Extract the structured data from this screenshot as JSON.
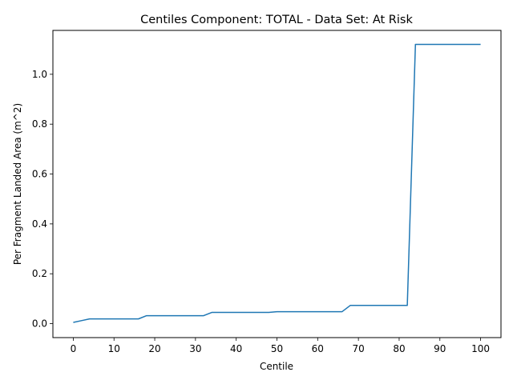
{
  "chart_data": {
    "type": "line",
    "title": "Centiles Component: TOTAL - Data Set: At Risk",
    "xlabel": "Centile",
    "ylabel": "Per Fragment Landed Area (m^2)",
    "xlim": [
      -5,
      105
    ],
    "ylim": [
      -0.056,
      1.176
    ],
    "xticks": [
      0,
      10,
      20,
      30,
      40,
      50,
      60,
      70,
      80,
      90,
      100
    ],
    "xtick_labels": [
      "0",
      "10",
      "20",
      "30",
      "40",
      "50",
      "60",
      "70",
      "80",
      "90",
      "100"
    ],
    "yticks": [
      0.0,
      0.2,
      0.4,
      0.6,
      0.8,
      1.0
    ],
    "ytick_labels": [
      "0.0",
      "0.2",
      "0.4",
      "0.6",
      "0.8",
      "1.0"
    ],
    "grid": false,
    "series": [
      {
        "color": "#1f77b4",
        "x": [
          0,
          2,
          4,
          6,
          8,
          10,
          12,
          14,
          16,
          18,
          20,
          22,
          24,
          26,
          28,
          30,
          32,
          34,
          36,
          38,
          40,
          42,
          44,
          46,
          48,
          50,
          52,
          54,
          56,
          58,
          60,
          62,
          64,
          66,
          68,
          70,
          72,
          74,
          76,
          78,
          80,
          82,
          84,
          86,
          88,
          90,
          92,
          94,
          96,
          98,
          100
        ],
        "y": [
          0.005,
          0.012,
          0.019,
          0.019,
          0.019,
          0.019,
          0.019,
          0.019,
          0.019,
          0.032,
          0.032,
          0.032,
          0.032,
          0.032,
          0.032,
          0.032,
          0.032,
          0.045,
          0.045,
          0.045,
          0.045,
          0.045,
          0.045,
          0.045,
          0.045,
          0.048,
          0.048,
          0.048,
          0.048,
          0.048,
          0.048,
          0.048,
          0.048,
          0.048,
          0.073,
          0.073,
          0.073,
          0.073,
          0.073,
          0.073,
          0.073,
          0.073,
          1.12,
          1.12,
          1.12,
          1.12,
          1.12,
          1.12,
          1.12,
          1.12,
          1.12
        ]
      }
    ]
  }
}
